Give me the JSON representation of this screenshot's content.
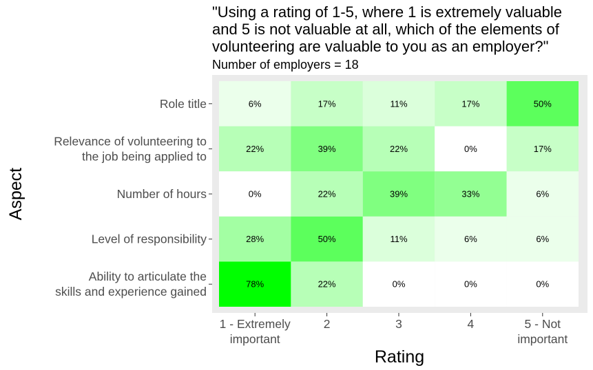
{
  "chart_data": {
    "type": "heatmap",
    "title": "\"Using a rating of 1-5, where 1 is extremely valuable\nand 5 is not valuable at all, which of the elements of\nvolunteering are valuable to you as an employer?\"",
    "subtitle": "Number of employers = 18",
    "xlabel": "Rating",
    "ylabel": "Aspect",
    "x_categories": [
      "1 - Extremely\nimportant",
      "2",
      "3",
      "4",
      "5 - Not\nimportant"
    ],
    "y_categories": [
      "Role title",
      "Relevance of volunteering to\nthe job being applied to",
      "Number of hours",
      "Level of responsibility",
      "Ability to articulate the\nskills and experience gained"
    ],
    "values": [
      [
        6,
        17,
        11,
        17,
        50
      ],
      [
        22,
        39,
        22,
        0,
        17
      ],
      [
        0,
        22,
        39,
        33,
        6
      ],
      [
        28,
        50,
        11,
        6,
        6
      ],
      [
        78,
        22,
        0,
        0,
        0
      ]
    ],
    "value_suffix": "%",
    "color_low": "#ffffff",
    "color_high": "#00ff00",
    "color_max_value": 78,
    "panel_background": "#ebebeb",
    "grid": false
  }
}
